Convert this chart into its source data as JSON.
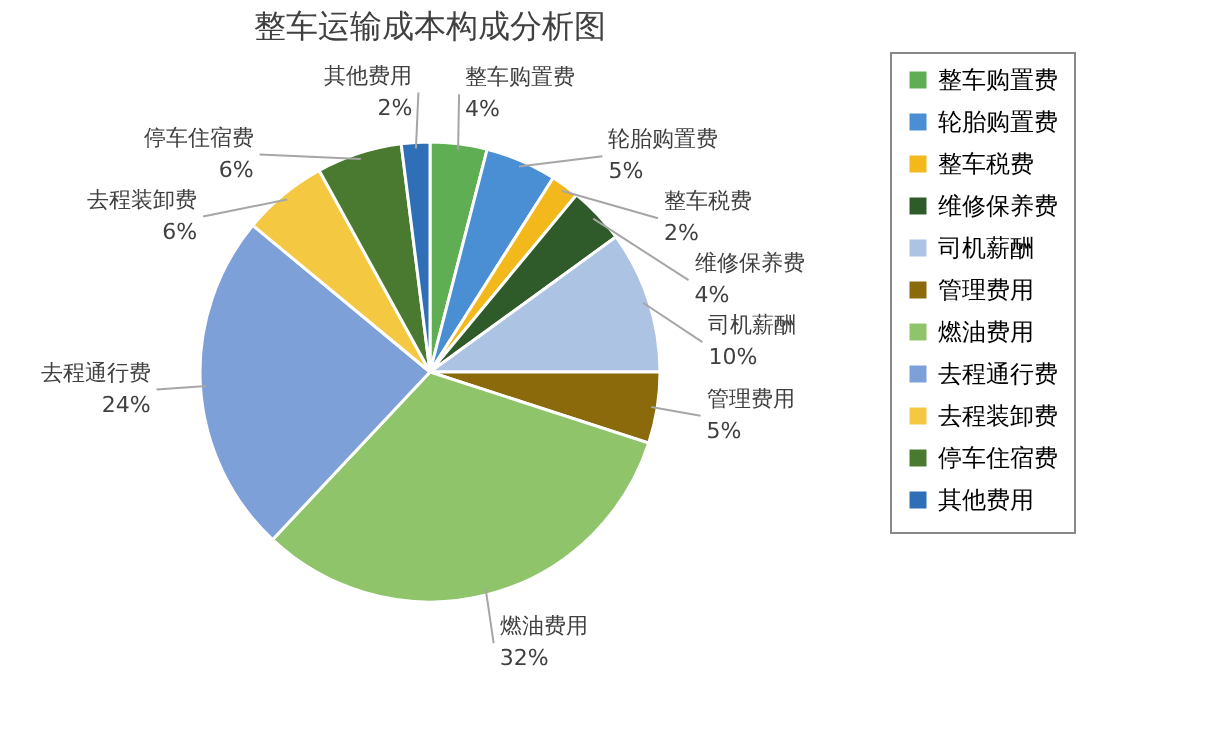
{
  "chart_data": {
    "type": "pie",
    "title": "整车运输成本构成分析图",
    "categories": [
      "整车购置费",
      "轮胎购置费",
      "整车税费",
      "维修保养费",
      "司机薪酬",
      "管理费用",
      "燃油费用",
      "去程通行费",
      "去程装卸费",
      "停车住宿费",
      "其他费用"
    ],
    "values": [
      4,
      5,
      2,
      4,
      10,
      5,
      32,
      24,
      6,
      6,
      2
    ],
    "value_labels": [
      "4%",
      "5%",
      "2%",
      "4%",
      "10%",
      "5%",
      "32%",
      "24%",
      "6%",
      "6%",
      "2%"
    ],
    "colors": [
      "#5fae53",
      "#4a8fd4",
      "#f2b81c",
      "#2f5a2a",
      "#adc3e3",
      "#8a6a0a",
      "#8fc46a",
      "#7ea0d8",
      "#f5c842",
      "#4a7a30",
      "#2f6fb8"
    ],
    "legend": "right"
  }
}
